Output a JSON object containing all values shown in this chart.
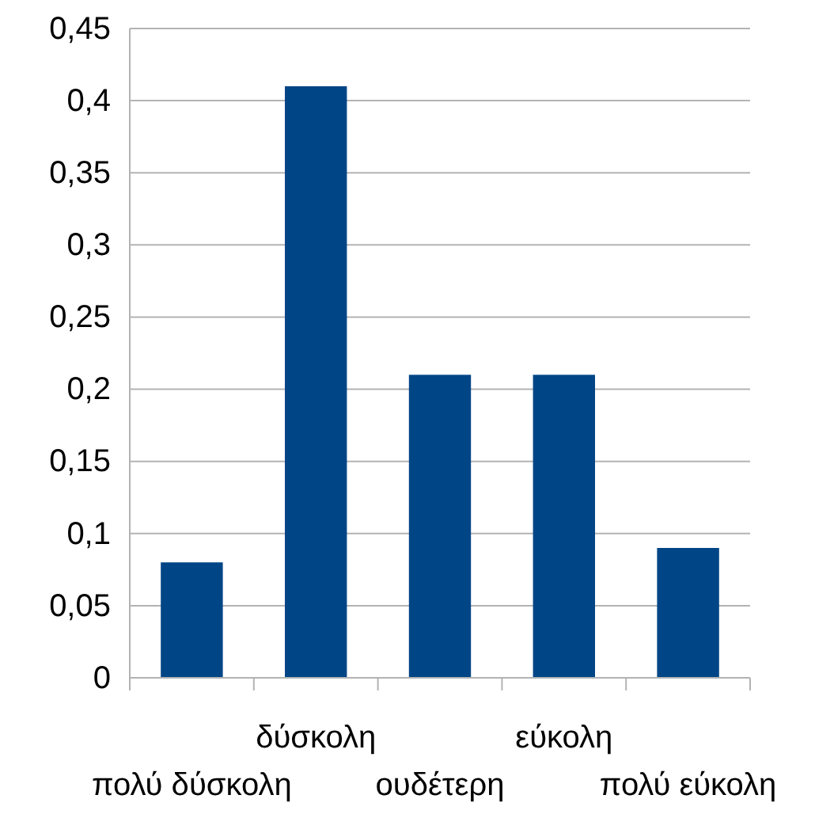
{
  "chart_data": {
    "type": "bar",
    "categories": [
      "πολύ δύσκολη",
      "δύσκολη",
      "ουδέτερη",
      "εύκολη",
      "πολύ εύκολη"
    ],
    "values": [
      0.08,
      0.41,
      0.21,
      0.21,
      0.09
    ],
    "color": "#004586",
    "ylim": [
      0,
      0.45
    ],
    "yticks": [
      0,
      {
        "value": 0.05,
        "label": "0,05"
      },
      {
        "value": 0.1,
        "label": "0,1"
      },
      {
        "value": 0.15,
        "label": "0,15"
      },
      {
        "value": 0.2,
        "label": "0,2"
      },
      {
        "value": 0.25,
        "label": "0,25"
      },
      {
        "value": 0.3,
        "label": "0,3"
      },
      {
        "value": 0.35,
        "label": "0,35"
      },
      {
        "value": 0.4,
        "label": "0,4"
      },
      {
        "value": 0.45,
        "label": "0,45"
      }
    ],
    "grid": "y"
  }
}
